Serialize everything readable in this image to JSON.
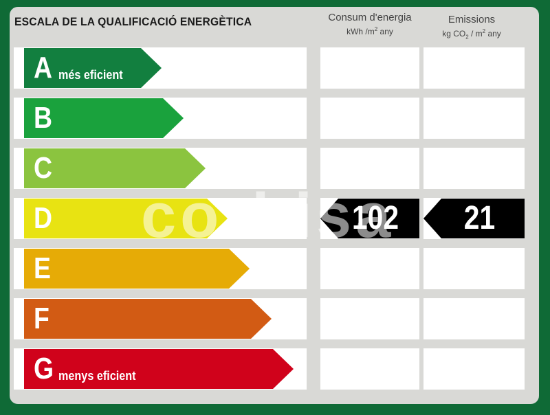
{
  "header": {
    "title": "ESCALA DE LA QUALIFICACIÓ ENERGÈTICA",
    "energy_col": {
      "title": "Consum d'energia",
      "unit_main": "kWh /m",
      "unit_sup": "2",
      "unit_tail": " any"
    },
    "emissions_col": {
      "title": "Emissions",
      "unit_a": "kg CO",
      "unit_sub": "2",
      "unit_b": " / m",
      "unit_sup": "2",
      "unit_tail": " any"
    }
  },
  "ratings": [
    {
      "letter": "A",
      "label": "més eficient",
      "color": "#127f3f"
    },
    {
      "letter": "B",
      "label": "",
      "color": "#1aa23d"
    },
    {
      "letter": "C",
      "label": "",
      "color": "#8bc43f"
    },
    {
      "letter": "D",
      "label": "",
      "color": "#e8e312"
    },
    {
      "letter": "E",
      "label": "",
      "color": "#e6ab06"
    },
    {
      "letter": "F",
      "label": "",
      "color": "#d25b14"
    },
    {
      "letter": "G",
      "label": "menys eficient",
      "color": "#d0021b"
    }
  ],
  "current": {
    "rating": "D",
    "energy_value": "102",
    "emissions_value": "21"
  },
  "watermark": "corbisa"
}
